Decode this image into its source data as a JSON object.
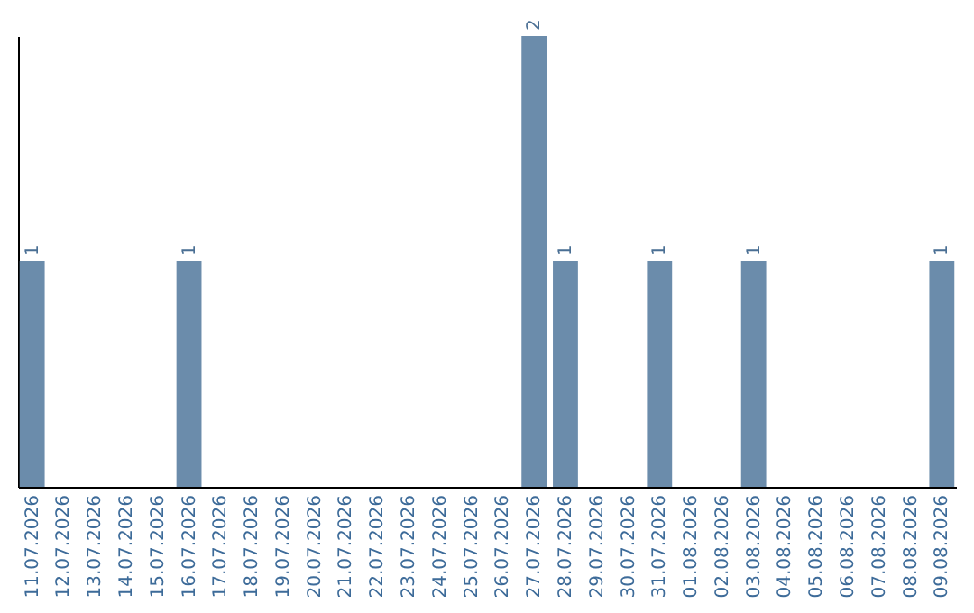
{
  "chart_data": {
    "type": "bar",
    "categories": [
      "11.07.2026",
      "12.07.2026",
      "13.07.2026",
      "14.07.2026",
      "15.07.2026",
      "16.07.2026",
      "17.07.2026",
      "18.07.2026",
      "19.07.2026",
      "20.07.2026",
      "21.07.2026",
      "22.07.2026",
      "23.07.2026",
      "24.07.2026",
      "25.07.2026",
      "26.07.2026",
      "27.07.2026",
      "28.07.2026",
      "29.07.2026",
      "30.07.2026",
      "31.07.2026",
      "01.08.2026",
      "02.08.2026",
      "03.08.2026",
      "04.08.2026",
      "05.08.2026",
      "06.08.2026",
      "07.08.2026",
      "08.08.2026",
      "09.08.2026"
    ],
    "values": [
      1,
      0,
      0,
      0,
      0,
      1,
      0,
      0,
      0,
      0,
      0,
      0,
      0,
      0,
      0,
      0,
      2,
      1,
      0,
      0,
      1,
      0,
      0,
      1,
      0,
      0,
      0,
      0,
      0,
      1
    ],
    "value_labels": [
      "1",
      null,
      null,
      null,
      null,
      "1",
      null,
      null,
      null,
      null,
      null,
      null,
      null,
      null,
      null,
      null,
      "2",
      "1",
      null,
      null,
      "1",
      null,
      null,
      "1",
      null,
      null,
      null,
      null,
      null,
      "1"
    ],
    "color": "#6b8cab"
  }
}
